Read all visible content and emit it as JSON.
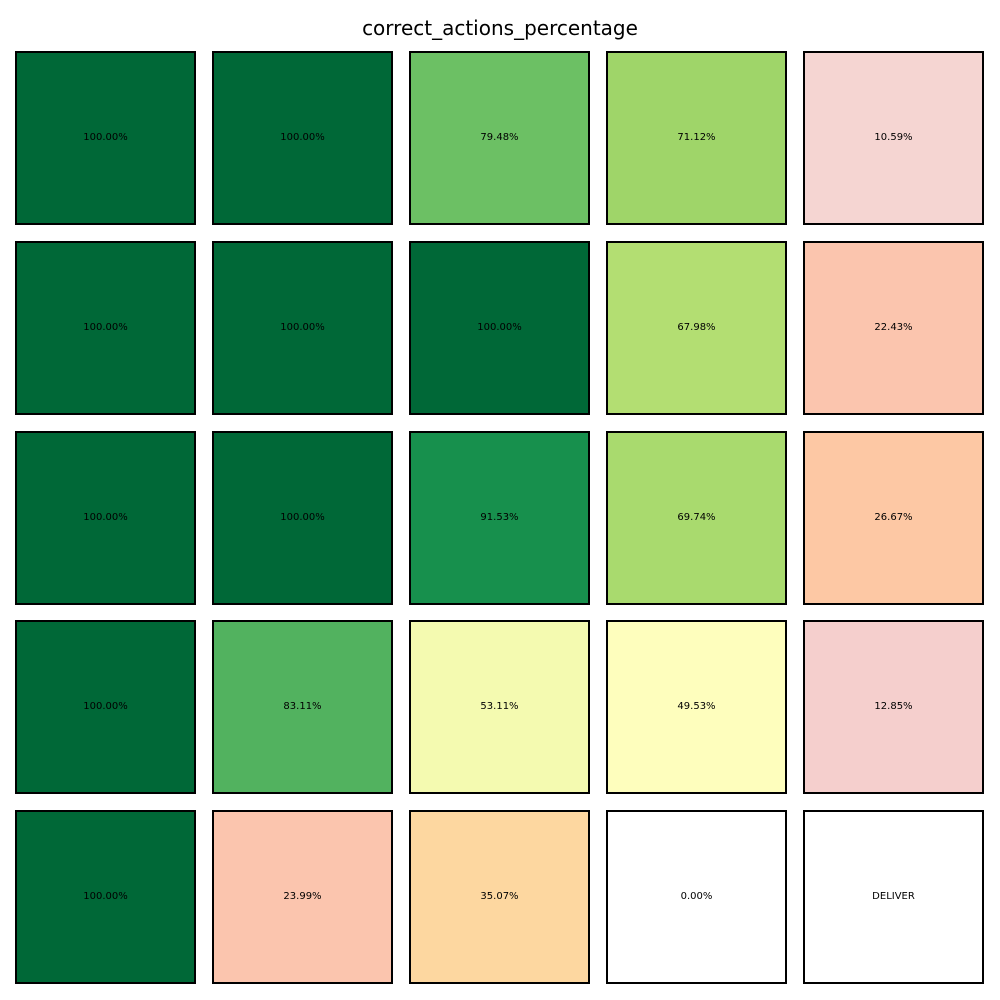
{
  "chart_data": {
    "type": "heatmap",
    "title": "correct_actions_percentage",
    "rows": 5,
    "cols": 5,
    "cells": [
      [
        {
          "label": "100.00%",
          "value": 100.0,
          "color": "#006837"
        },
        {
          "label": "100.00%",
          "value": 100.0,
          "color": "#006837"
        },
        {
          "label": "79.48%",
          "value": 79.48,
          "color": "#6cc064"
        },
        {
          "label": "71.12%",
          "value": 71.12,
          "color": "#9fd569"
        },
        {
          "label": "10.59%",
          "value": 10.59,
          "color": "#f5d5d2"
        }
      ],
      [
        {
          "label": "100.00%",
          "value": 100.0,
          "color": "#006837"
        },
        {
          "label": "100.00%",
          "value": 100.0,
          "color": "#006837"
        },
        {
          "label": "100.00%",
          "value": 100.0,
          "color": "#006837"
        },
        {
          "label": "67.98%",
          "value": 67.98,
          "color": "#b3de72"
        },
        {
          "label": "22.43%",
          "value": 22.43,
          "color": "#fbc5ae"
        }
      ],
      [
        {
          "label": "100.00%",
          "value": 100.0,
          "color": "#006837"
        },
        {
          "label": "100.00%",
          "value": 100.0,
          "color": "#006837"
        },
        {
          "label": "91.53%",
          "value": 91.53,
          "color": "#17904d"
        },
        {
          "label": "69.74%",
          "value": 69.74,
          "color": "#a9da6e"
        },
        {
          "label": "26.67%",
          "value": 26.67,
          "color": "#fdc8a4"
        }
      ],
      [
        {
          "label": "100.00%",
          "value": 100.0,
          "color": "#006837"
        },
        {
          "label": "83.11%",
          "value": 83.11,
          "color": "#52b25f"
        },
        {
          "label": "53.11%",
          "value": 53.11,
          "color": "#f4fab0"
        },
        {
          "label": "49.53%",
          "value": 49.53,
          "color": "#fefebd"
        },
        {
          "label": "12.85%",
          "value": 12.85,
          "color": "#f5cfcd"
        }
      ],
      [
        {
          "label": "100.00%",
          "value": 100.0,
          "color": "#006837"
        },
        {
          "label": "23.99%",
          "value": 23.99,
          "color": "#fbc5ae"
        },
        {
          "label": "35.07%",
          "value": 35.07,
          "color": "#fdd7a0"
        },
        {
          "label": "0.00%",
          "value": 0.0,
          "color": "#ffffff"
        },
        {
          "label": "DELIVER",
          "value": null,
          "color": "#ffffff"
        }
      ]
    ]
  }
}
